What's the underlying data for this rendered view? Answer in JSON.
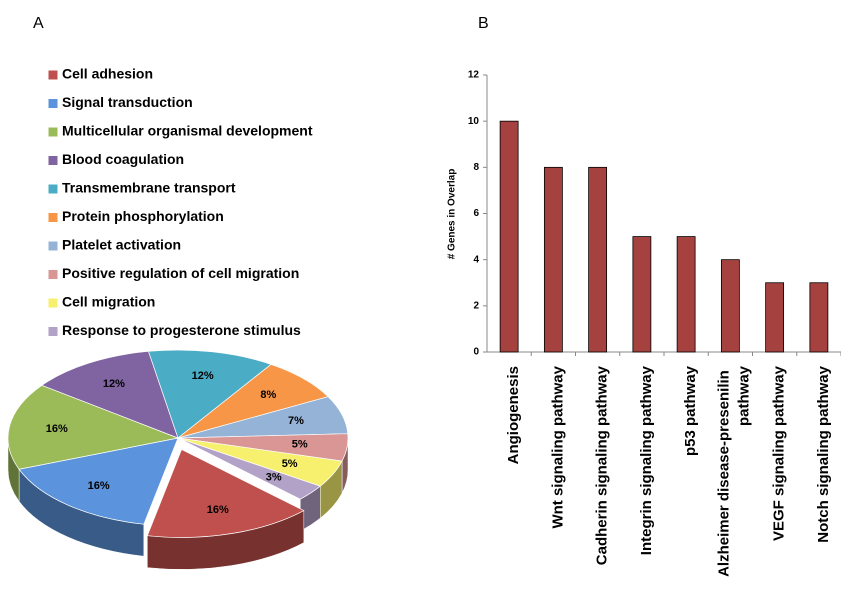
{
  "chart_data": [
    {
      "type": "pie",
      "panel_label": "A",
      "categories": [
        "Cell adhesion",
        "Signal transduction",
        "Multicellular organismal development",
        "Blood coagulation",
        "Transmembrane transport",
        "Protein phosphorylation",
        "Platelet activation",
        "Positive regulation of cell migration",
        "Cell migration",
        "Response to progesterone stimulus"
      ],
      "values": [
        16,
        16,
        16,
        12,
        12,
        8,
        7,
        5,
        5,
        3
      ],
      "value_labels": [
        "16%",
        "16%",
        "16%",
        "12%",
        "12%",
        "8%",
        "7%",
        "5%",
        "5%",
        "3%"
      ],
      "colors": [
        "#c0504d",
        "#5b93dc",
        "#9bbb59",
        "#8064a2",
        "#4bacc6",
        "#f79646",
        "#95b3d7",
        "#d99694",
        "#f7f06e",
        "#b3a2c7"
      ],
      "exploded": [
        0
      ]
    },
    {
      "type": "bar",
      "panel_label": "B",
      "categories": [
        "Angiogenesis",
        "Wnt signaling pathway",
        "Cadherin signaling pathway",
        "Integrin signaling pathway",
        "p53 pathway",
        "Alzheimer disease-presenilin pathway",
        "VEGF signaling pathway",
        "Notch signaling pathway"
      ],
      "values": [
        10,
        8,
        8,
        5,
        5,
        4,
        3,
        3
      ],
      "color": "#a5423f",
      "ylabel": "# Genes in Overlap",
      "ylim": [
        0,
        12
      ],
      "yticks": [
        0,
        2,
        4,
        6,
        8,
        10,
        12
      ]
    }
  ]
}
